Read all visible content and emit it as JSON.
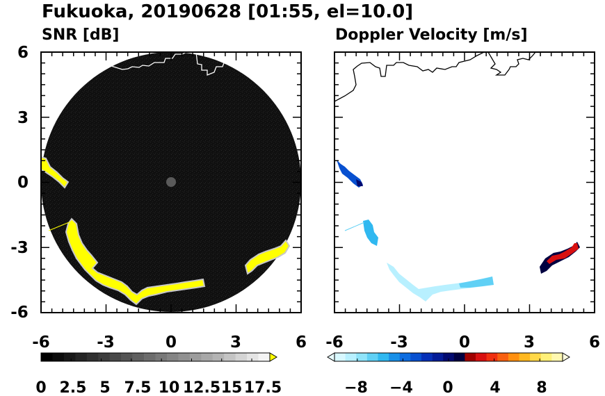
{
  "figure": {
    "title": "Fukuoka, 20190628 [01:55, el=10.0]"
  },
  "chart_data": [
    {
      "type": "heatmap",
      "title": "SNR [dB]",
      "xlim": [
        -6,
        6
      ],
      "ylim": [
        -6,
        6
      ],
      "xticks": [
        "-6",
        "-3",
        "0",
        "3",
        "6"
      ],
      "yticks": [
        "6",
        "3",
        "0",
        "-3",
        "-6"
      ],
      "radar_range": 6,
      "colorbar": {
        "min": 0,
        "max": 19,
        "tick_labels": [
          "0",
          "2.5",
          "5",
          "7.5",
          "10",
          "12.5",
          "15",
          "17.5"
        ],
        "tick_values": [
          0,
          2.5,
          5,
          7.5,
          10,
          12.5,
          15,
          17.5
        ],
        "colors": [
          "#000000",
          "#0c0c0c",
          "#181818",
          "#242424",
          "#303030",
          "#3c3c3c",
          "#484848",
          "#545454",
          "#606060",
          "#6c6c6c",
          "#787878",
          "#848484",
          "#909090",
          "#9c9c9c",
          "#a8a8a8",
          "#b4b4b4",
          "#c4c4c4",
          "#d4d4d4",
          "#e4e4e4",
          "#f4f4f4"
        ],
        "extend_color": "#ffff00"
      },
      "echo_color": "#ffff00",
      "background_color": "#111111"
    },
    {
      "type": "heatmap",
      "title": "Doppler Velocity [m/s]",
      "xlim": [
        -6,
        6
      ],
      "ylim": [
        -6,
        6
      ],
      "xticks": [
        "-6",
        "-3",
        "0",
        "3",
        "6"
      ],
      "radar_range": 6,
      "colorbar": {
        "min": -10,
        "max": 10,
        "tick_labels": [
          "−8",
          "−4",
          "0",
          "4",
          "8"
        ],
        "tick_values": [
          -8,
          -4,
          0,
          4,
          8
        ],
        "colors": [
          "#d8f8ff",
          "#b8f0ff",
          "#90e4fa",
          "#60d0f5",
          "#30b8f0",
          "#1890e8",
          "#0c6ce0",
          "#0850d0",
          "#0630b8",
          "#041c98",
          "#020a70",
          "#000040",
          "#a00000",
          "#d81010",
          "#f03010",
          "#f86010",
          "#ff9010",
          "#ffb820",
          "#ffd848",
          "#fff078",
          "#fff8b0"
        ],
        "extend_low": "#e8fcff",
        "extend_high": "#fffce0"
      }
    }
  ]
}
